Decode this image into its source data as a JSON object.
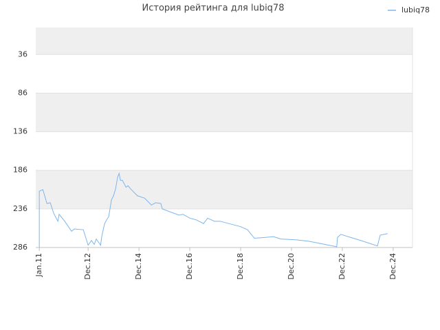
{
  "chart_data": {
    "type": "line",
    "title": "История рейтинга для lubiq78",
    "x": [
      2011.0,
      2011.0,
      2011.14,
      2011.3,
      2011.43,
      2011.57,
      2011.73,
      2011.78,
      2012.0,
      2012.27,
      2012.38,
      2012.73,
      2012.92,
      2013.05,
      2013.16,
      2013.24,
      2013.41,
      2013.46,
      2013.57,
      2013.65,
      2013.73,
      2013.84,
      2013.92,
      2014.0,
      2014.08,
      2014.14,
      2014.19,
      2014.27,
      2014.41,
      2014.49,
      2014.59,
      2014.86,
      2015.14,
      2015.41,
      2015.57,
      2015.78,
      2015.84,
      2016.16,
      2016.49,
      2016.65,
      2016.92,
      2017.16,
      2017.46,
      2017.62,
      2017.89,
      2018.11,
      2018.92,
      2019.19,
      2019.46,
      2019.86,
      2020.22,
      2020.49,
      2021.08,
      2021.62,
      2022.7,
      2022.73,
      2022.86,
      2023.65,
      2024.3,
      2024.41,
      2024.7
    ],
    "series": [
      {
        "name": "lubiq78",
        "color": "#7cb5ec",
        "values": [
          286,
          213,
          211,
          229,
          228,
          242,
          252,
          243,
          252,
          265,
          262,
          263,
          283,
          277,
          282,
          275,
          283,
          271,
          255,
          250,
          246,
          224,
          219,
          210,
          195,
          190,
          199,
          199,
          208,
          206,
          210,
          219,
          222,
          231,
          228,
          229,
          236,
          240,
          244,
          243,
          248,
          250,
          255,
          248,
          252,
          252,
          259,
          263,
          274,
          273,
          272,
          275,
          276,
          278,
          285,
          273,
          269,
          277,
          284,
          270,
          268
        ]
      }
    ],
    "xlim": [
      2010.86,
      2025.68
    ],
    "xticks": [
      {
        "value": 2011.0,
        "label": "Jan.11"
      },
      {
        "value": 2012.92,
        "label": "Dec.12"
      },
      {
        "value": 2014.92,
        "label": "Dec.14"
      },
      {
        "value": 2016.92,
        "label": "Dec.16"
      },
      {
        "value": 2018.92,
        "label": "Dec.18"
      },
      {
        "value": 2020.92,
        "label": "Dec.20"
      },
      {
        "value": 2022.92,
        "label": "Dec.22"
      },
      {
        "value": 2024.92,
        "label": "Dec.24"
      }
    ],
    "ylim": [
      286,
      1
    ],
    "yticks": [
      36,
      86,
      136,
      186,
      236,
      286
    ],
    "grid": true,
    "legend": "top-right"
  }
}
